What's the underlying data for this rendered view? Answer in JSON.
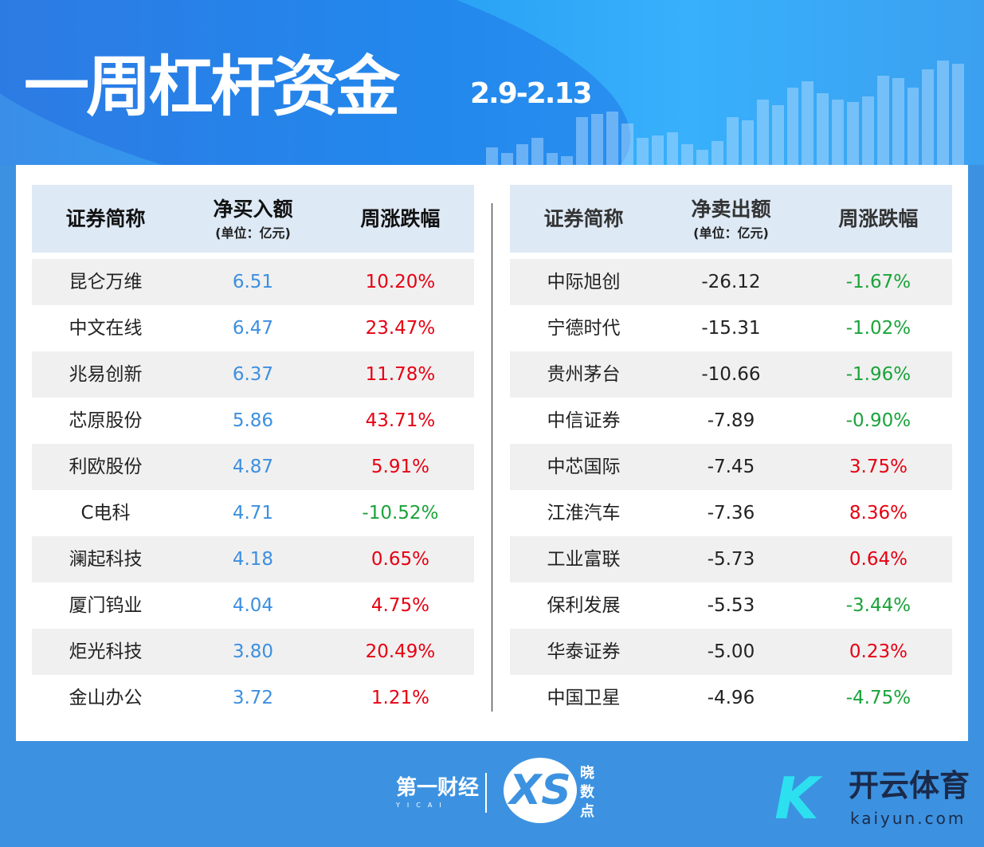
{
  "header": {
    "title": "一周杠杆资金",
    "date_range": "2.9-2.13"
  },
  "colors": {
    "positive_value": "#3d8fe0",
    "up": "#e60012",
    "down": "#1aa33a",
    "background": "#3c92e0",
    "table_header": "#dde9f5"
  },
  "buy_table": {
    "headers": {
      "name": "证券简称",
      "amount": "净买入额",
      "unit": "(单位：亿元)",
      "change": "周涨跌幅"
    },
    "rows": [
      {
        "name": "昆仑万维",
        "amount": "6.51",
        "change": "10.20%"
      },
      {
        "name": "中文在线",
        "amount": "6.47",
        "change": "23.47%"
      },
      {
        "name": "兆易创新",
        "amount": "6.37",
        "change": "11.78%"
      },
      {
        "name": "芯原股份",
        "amount": "5.86",
        "change": "43.71%"
      },
      {
        "name": "利欧股份",
        "amount": "4.87",
        "change": "5.91%"
      },
      {
        "name": "C电科",
        "amount": "4.71",
        "change": "-10.52%"
      },
      {
        "name": "澜起科技",
        "amount": "4.18",
        "change": "0.65%"
      },
      {
        "name": "厦门钨业",
        "amount": "4.04",
        "change": "4.75%"
      },
      {
        "name": "炬光科技",
        "amount": "3.80",
        "change": "20.49%"
      },
      {
        "name": "金山办公",
        "amount": "3.72",
        "change": "1.21%"
      }
    ]
  },
  "sell_table": {
    "headers": {
      "name": "证券简称",
      "amount": "净卖出额",
      "unit": "(单位：亿元)",
      "change": "周涨跌幅"
    },
    "rows": [
      {
        "name": "中际旭创",
        "amount": "-26.12",
        "change": "-1.67%"
      },
      {
        "name": "宁德时代",
        "amount": "-15.31",
        "change": "-1.02%"
      },
      {
        "name": "贵州茅台",
        "amount": "-10.66",
        "change": "-1.96%"
      },
      {
        "name": "中信证券",
        "amount": "-7.89",
        "change": "-0.90%"
      },
      {
        "name": "中芯国际",
        "amount": "-7.45",
        "change": "3.75%"
      },
      {
        "name": "江淮汽车",
        "amount": "-7.36",
        "change": "8.36%"
      },
      {
        "name": "工业富联",
        "amount": "-5.73",
        "change": "0.64%"
      },
      {
        "name": "保利发展",
        "amount": "-5.53",
        "change": "-3.44%"
      },
      {
        "name": "华泰证券",
        "amount": "-5.00",
        "change": "0.23%"
      },
      {
        "name": "中国卫星",
        "amount": "-4.96",
        "change": "-4.75%"
      }
    ]
  },
  "footer": {
    "yicai": "第一财经",
    "yicai_en": "YICAI",
    "xiaoshudian": "晓数点",
    "xs_mark": "XS",
    "kaiyun_mark": "K",
    "kaiyun": "开云体育",
    "kaiyun_url": "kaiyun.com"
  }
}
